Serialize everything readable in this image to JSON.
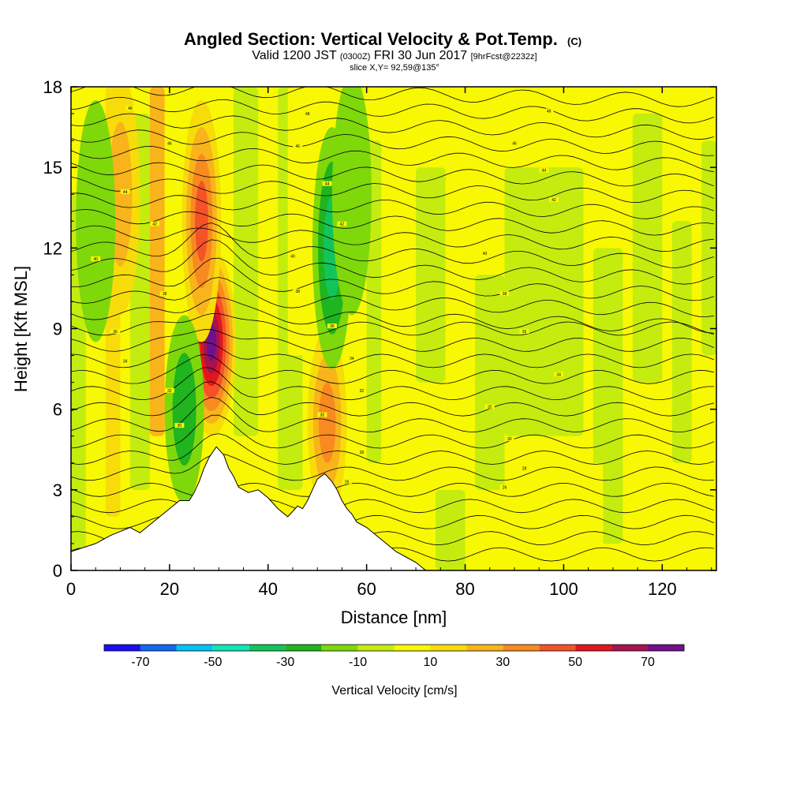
{
  "chart_data": {
    "type": "heatmap",
    "title": "Angled Section: Vertical Velocity & Pot.Temp.",
    "title_mark": "(C)",
    "subtitle_parts": [
      "Valid 1200 JST ",
      "(0300Z)",
      " FRI 30 Jun 2017 ",
      "[9hrFcst@2232z]"
    ],
    "slice_label": "slice X,Y= 92,59@135°",
    "xlabel": "Distance [nm]",
    "ylabel": "Height [Kft MSL]",
    "xlim": [
      0,
      131
    ],
    "ylim": [
      0,
      18
    ],
    "xticks": [
      0,
      20,
      40,
      60,
      80,
      100,
      120
    ],
    "yticks": [
      0,
      3,
      6,
      9,
      12,
      15,
      18
    ],
    "grid": false,
    "colorbar": {
      "label": "Vertical Velocity [cm/s]",
      "ticks": [
        -70,
        -50,
        -30,
        -10,
        10,
        30,
        50,
        70
      ],
      "bins": [
        -80,
        -70,
        -60,
        -50,
        -40,
        -30,
        -20,
        -10,
        0,
        10,
        20,
        30,
        40,
        50,
        60,
        70,
        80
      ],
      "colors": [
        "#1c0df5",
        "#1267f5",
        "#00c3f5",
        "#10e6b8",
        "#12c55a",
        "#20b41e",
        "#7fd80a",
        "#c4ec0f",
        "#f8f802",
        "#f7dc0a",
        "#f8b41a",
        "#f88a20",
        "#f55228",
        "#e0161e",
        "#a8134c",
        "#70108e"
      ]
    },
    "velocity_features": [
      {
        "name": "updraft core",
        "x_nm": 28.5,
        "height_kft": 8.5,
        "max_cm_s": 75
      },
      {
        "name": "updraft",
        "x_nm": 26.5,
        "height_kft": 13.0,
        "max_cm_s": 50
      },
      {
        "name": "updraft",
        "x_nm": 52.0,
        "height_kft": 5.5,
        "max_cm_s": 35
      },
      {
        "name": "updraft band",
        "x_nm": 10.0,
        "height_kft": 14.0,
        "max_cm_s": 25
      },
      {
        "name": "downdraft",
        "x_nm": 53.0,
        "height_kft": 12.0,
        "min_cm_s": -40
      },
      {
        "name": "downdraft",
        "x_nm": 23.0,
        "height_kft": 6.0,
        "min_cm_s": -30
      },
      {
        "name": "downdraft",
        "x_nm": 57.0,
        "height_kft": 14.0,
        "min_cm_s": -18
      },
      {
        "name": "downdraft",
        "x_nm": 5.0,
        "height_kft": 13.0,
        "min_cm_s": -15
      }
    ],
    "terrain_profile_kft": {
      "x_nm": [
        0,
        5,
        8,
        12,
        14,
        16,
        18,
        20,
        22,
        24,
        25,
        26,
        27,
        28,
        29.5,
        31,
        32,
        33,
        34,
        36,
        38,
        40,
        42,
        44,
        45,
        46,
        47,
        48,
        49,
        50,
        51.5,
        53,
        54,
        55,
        56,
        57,
        58,
        60,
        62,
        64,
        66,
        68,
        70,
        72,
        131
      ],
      "height_kft": [
        0.7,
        1.0,
        1.3,
        1.6,
        1.4,
        1.7,
        2.0,
        2.3,
        2.6,
        2.6,
        2.9,
        3.3,
        3.8,
        4.2,
        4.6,
        4.3,
        3.8,
        3.5,
        3.1,
        2.9,
        3.0,
        2.7,
        2.3,
        2.0,
        2.2,
        2.4,
        2.3,
        2.6,
        3.0,
        3.4,
        3.6,
        3.3,
        3.0,
        2.6,
        2.3,
        2.1,
        1.8,
        1.6,
        1.3,
        1.0,
        0.7,
        0.5,
        0.3,
        0.0,
        0.0
      ]
    },
    "theta_isentropes": {
      "labels": [
        {
          "x_nm": 12,
          "height_kft": 17.2,
          "text": "48"
        },
        {
          "x_nm": 20,
          "height_kft": 15.9,
          "text": "46"
        },
        {
          "x_nm": 11,
          "height_kft": 14.1,
          "text": "44"
        },
        {
          "x_nm": 17,
          "height_kft": 12.9,
          "text": "42"
        },
        {
          "x_nm": 5,
          "height_kft": 11.6,
          "text": "40"
        },
        {
          "x_nm": 19,
          "height_kft": 10.3,
          "text": "38"
        },
        {
          "x_nm": 9,
          "height_kft": 8.9,
          "text": "36"
        },
        {
          "x_nm": 11,
          "height_kft": 7.8,
          "text": "34"
        },
        {
          "x_nm": 20,
          "height_kft": 6.7,
          "text": "32"
        },
        {
          "x_nm": 22,
          "height_kft": 5.4,
          "text": "30"
        },
        {
          "x_nm": 48,
          "height_kft": 17.0,
          "text": "48"
        },
        {
          "x_nm": 46,
          "height_kft": 15.8,
          "text": "46"
        },
        {
          "x_nm": 52,
          "height_kft": 14.4,
          "text": "44"
        },
        {
          "x_nm": 55,
          "height_kft": 12.9,
          "text": "42"
        },
        {
          "x_nm": 45,
          "height_kft": 11.7,
          "text": "40"
        },
        {
          "x_nm": 46,
          "height_kft": 10.4,
          "text": "38"
        },
        {
          "x_nm": 53,
          "height_kft": 9.1,
          "text": "36"
        },
        {
          "x_nm": 57,
          "height_kft": 7.9,
          "text": "34"
        },
        {
          "x_nm": 59,
          "height_kft": 6.7,
          "text": "32"
        },
        {
          "x_nm": 51,
          "height_kft": 5.8,
          "text": "30"
        },
        {
          "x_nm": 59,
          "height_kft": 4.4,
          "text": "28"
        },
        {
          "x_nm": 56,
          "height_kft": 3.3,
          "text": "26"
        },
        {
          "x_nm": 97,
          "height_kft": 17.1,
          "text": "48"
        },
        {
          "x_nm": 90,
          "height_kft": 15.9,
          "text": "46"
        },
        {
          "x_nm": 96,
          "height_kft": 14.9,
          "text": "44"
        },
        {
          "x_nm": 98,
          "height_kft": 13.8,
          "text": "42"
        },
        {
          "x_nm": 84,
          "height_kft": 11.8,
          "text": "40"
        },
        {
          "x_nm": 88,
          "height_kft": 10.3,
          "text": "38"
        },
        {
          "x_nm": 92,
          "height_kft": 8.9,
          "text": "36"
        },
        {
          "x_nm": 99,
          "height_kft": 7.3,
          "text": "34"
        },
        {
          "x_nm": 85,
          "height_kft": 6.1,
          "text": "32"
        },
        {
          "x_nm": 89,
          "height_kft": 4.9,
          "text": "30"
        },
        {
          "x_nm": 92,
          "height_kft": 3.8,
          "text": "28"
        },
        {
          "x_nm": 88,
          "height_kft": 3.1,
          "text": "26"
        }
      ]
    }
  }
}
